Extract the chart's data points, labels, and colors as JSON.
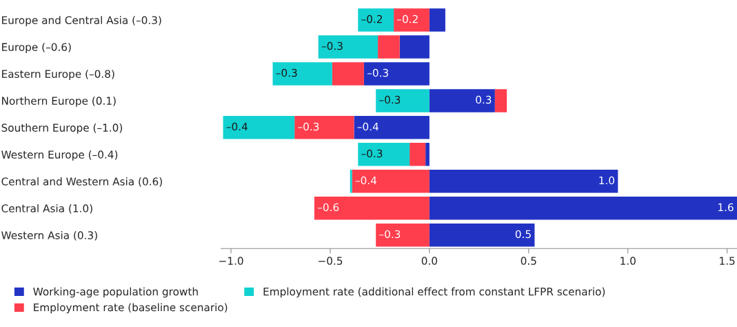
{
  "chart_data": {
    "type": "bar",
    "orientation": "horizontal",
    "stacked": true,
    "categories": [
      "Europe and Central Asia (–0.3)",
      "Europe (–0.6)",
      "Eastern Europe (–0.8)",
      "Northern Europe (0.1)",
      "Southern Europe (–1.0)",
      "Western Europe (–0.4)",
      "Central and Western Asia (0.6)",
      "Central Asia (1.0)",
      "Western Asia (0.3)"
    ],
    "series": [
      {
        "name": "Working-age population growth",
        "color": "#2233c4",
        "values": [
          0.08,
          -0.15,
          -0.33,
          0.33,
          -0.38,
          -0.02,
          0.95,
          1.55,
          0.53
        ],
        "value_labels": [
          null,
          null,
          "–0.3",
          "0.3",
          "–0.4",
          null,
          "1.0",
          "1.6",
          "0.5"
        ]
      },
      {
        "name": "Employment rate (baseline scenario)",
        "color": "#ff3e4d",
        "values": [
          -0.18,
          -0.11,
          -0.16,
          0.06,
          -0.3,
          -0.08,
          -0.39,
          -0.58,
          -0.27
        ],
        "value_labels": [
          "–0.2",
          null,
          null,
          null,
          "–0.3",
          null,
          "–0.4",
          "–0.6",
          "–0.3"
        ]
      },
      {
        "name": "Employment rate (additional effect from constant LFPR scenario)",
        "color": "#12d1d1",
        "values": [
          -0.18,
          -0.3,
          -0.3,
          -0.27,
          -0.36,
          -0.26,
          -0.01,
          null,
          null
        ],
        "value_labels": [
          "–0.2",
          "–0.3",
          "–0.3",
          "–0.3",
          "–0.4",
          "–0.3",
          null,
          null,
          null
        ]
      }
    ],
    "xlim": [
      -1.05,
      1.55
    ],
    "xticks": [
      {
        "value": -1.0,
        "label": "−1.0"
      },
      {
        "value": -0.5,
        "label": "−0.5"
      },
      {
        "value": 0.0,
        "label": "0.0"
      },
      {
        "value": 0.5,
        "label": "0.5"
      },
      {
        "value": 1.0,
        "label": "1.0"
      },
      {
        "value": 1.5,
        "label": "1.5"
      }
    ],
    "legend": "bottom"
  }
}
